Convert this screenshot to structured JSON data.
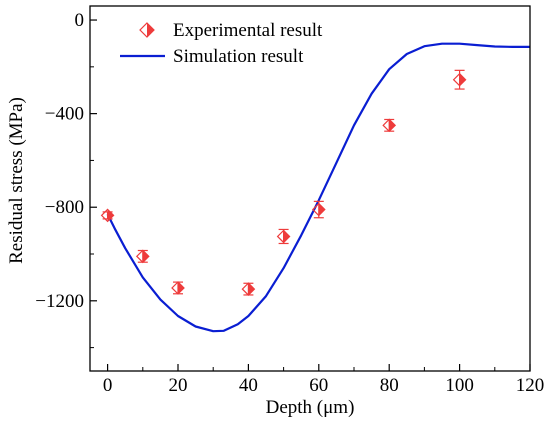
{
  "chart_data": {
    "type": "scatter",
    "title": "",
    "xlabel": "Depth (μm)",
    "ylabel": "Residual stress (MPa)",
    "xlim": [
      -5,
      120
    ],
    "ylim": [
      -1500,
      60
    ],
    "x_ticks": [
      0,
      20,
      40,
      60,
      80,
      100,
      120
    ],
    "y_ticks": [
      0,
      -400,
      -800,
      -1200
    ],
    "legend_position": "top-left",
    "grid": false,
    "series": [
      {
        "name": "Experimental result",
        "kind": "scatter",
        "marker": "half-filled-diamond",
        "color": "#ee3b3b",
        "points": [
          {
            "x": 0,
            "y": -835,
            "err": 15
          },
          {
            "x": 10,
            "y": -1010,
            "err": 25
          },
          {
            "x": 20,
            "y": -1145,
            "err": 25
          },
          {
            "x": 40,
            "y": -1150,
            "err": 25
          },
          {
            "x": 50,
            "y": -925,
            "err": 30
          },
          {
            "x": 60,
            "y": -810,
            "err": 35
          },
          {
            "x": 80,
            "y": -450,
            "err": 25
          },
          {
            "x": 100,
            "y": -255,
            "err": 40
          }
        ]
      },
      {
        "name": "Simulation result",
        "kind": "line",
        "color": "#0a1ed2",
        "points": [
          {
            "x": 0,
            "y": -830
          },
          {
            "x": 2,
            "y": -890
          },
          {
            "x": 5,
            "y": -975
          },
          {
            "x": 10,
            "y": -1100
          },
          {
            "x": 15,
            "y": -1195
          },
          {
            "x": 20,
            "y": -1265
          },
          {
            "x": 25,
            "y": -1310
          },
          {
            "x": 30,
            "y": -1330
          },
          {
            "x": 33,
            "y": -1328
          },
          {
            "x": 37,
            "y": -1300
          },
          {
            "x": 40,
            "y": -1265
          },
          {
            "x": 45,
            "y": -1180
          },
          {
            "x": 50,
            "y": -1060
          },
          {
            "x": 55,
            "y": -920
          },
          {
            "x": 60,
            "y": -770
          },
          {
            "x": 65,
            "y": -610
          },
          {
            "x": 70,
            "y": -450
          },
          {
            "x": 75,
            "y": -315
          },
          {
            "x": 80,
            "y": -210
          },
          {
            "x": 85,
            "y": -145
          },
          {
            "x": 90,
            "y": -112
          },
          {
            "x": 95,
            "y": -101
          },
          {
            "x": 100,
            "y": -101
          },
          {
            "x": 105,
            "y": -107
          },
          {
            "x": 110,
            "y": -113
          },
          {
            "x": 115,
            "y": -115
          },
          {
            "x": 120,
            "y": -115
          }
        ]
      }
    ]
  }
}
